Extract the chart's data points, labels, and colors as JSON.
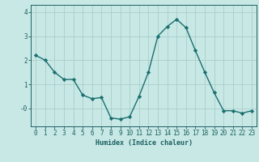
{
  "x": [
    0,
    1,
    2,
    3,
    4,
    5,
    6,
    7,
    8,
    9,
    10,
    11,
    12,
    13,
    14,
    15,
    16,
    17,
    18,
    19,
    20,
    21,
    22,
    23
  ],
  "y": [
    2.2,
    2.0,
    1.5,
    1.2,
    1.2,
    0.55,
    0.4,
    0.45,
    -0.4,
    -0.45,
    -0.35,
    0.5,
    1.5,
    3.0,
    3.4,
    3.7,
    3.35,
    2.4,
    1.5,
    0.65,
    -0.1,
    -0.1,
    -0.2,
    -0.1
  ],
  "line_color": "#1a7070",
  "marker": "D",
  "markersize": 2.2,
  "linewidth": 1.0,
  "bg_color": "#c8e8e5",
  "grid_color": "#a8ceca",
  "axis_color": "#1a6060",
  "xlabel": "Humidex (Indice chaleur)",
  "xlabel_fontsize": 6.0,
  "tick_fontsize": 5.5,
  "ylim": [
    -0.75,
    4.3
  ],
  "xlim": [
    -0.5,
    23.5
  ]
}
